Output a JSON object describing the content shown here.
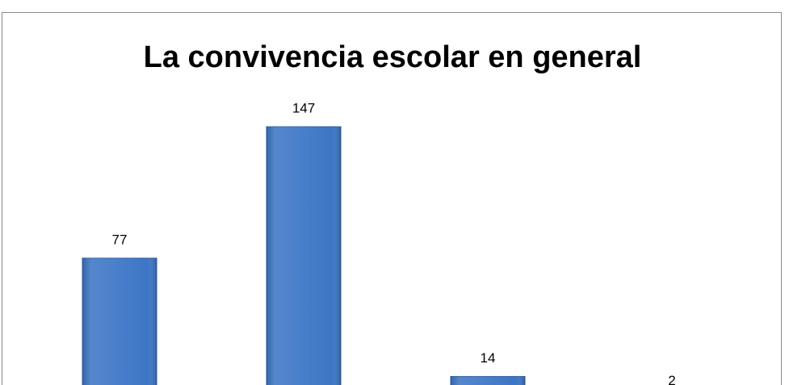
{
  "chart_data": {
    "type": "bar",
    "title": "La convivencia escolar en general",
    "categories": [
      null,
      null,
      null,
      null
    ],
    "values": [
      77,
      147,
      14,
      2
    ],
    "color": "#3d76c6"
  }
}
